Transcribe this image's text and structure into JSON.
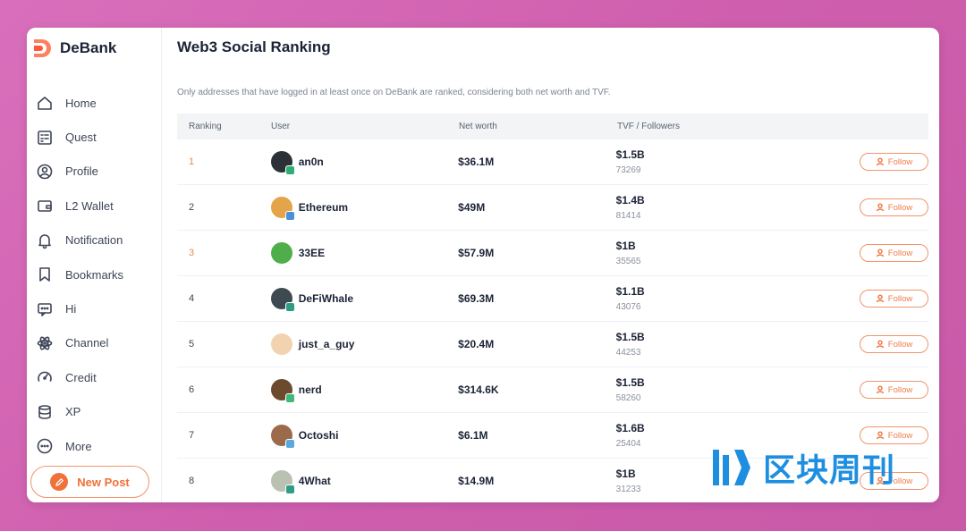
{
  "brand": {
    "name": "DeBank",
    "accent": "#f0713a"
  },
  "sidebar": {
    "items": [
      {
        "label": "Home",
        "icon": "home-icon"
      },
      {
        "label": "Quest",
        "icon": "checklist-icon"
      },
      {
        "label": "Profile",
        "icon": "profile-icon"
      },
      {
        "label": "L2 Wallet",
        "icon": "wallet-icon"
      },
      {
        "label": "Notification",
        "icon": "bell-icon"
      },
      {
        "label": "Bookmarks",
        "icon": "bookmark-icon"
      },
      {
        "label": "Hi",
        "icon": "chat-icon"
      },
      {
        "label": "Channel",
        "icon": "atom-icon"
      },
      {
        "label": "Credit",
        "icon": "gauge-icon"
      },
      {
        "label": "XP",
        "icon": "database-icon"
      },
      {
        "label": "More",
        "icon": "more-icon"
      }
    ],
    "new_post_label": "New Post"
  },
  "main": {
    "title": "Web3 Social Ranking",
    "subtitle": "Only addresses that have logged in at least once on DeBank are ranked, considering both net worth and TVF.",
    "columns": {
      "ranking": "Ranking",
      "user": "User",
      "net_worth": "Net worth",
      "tvf": "TVF / Followers"
    },
    "follow_label": "Follow",
    "rows": [
      {
        "rank": "1",
        "user": "an0n",
        "net_worth": "$36.1M",
        "tvf": "$1.5B",
        "followers": "73269",
        "avatar_color": "#2c3138",
        "badge_color": "#2fae74"
      },
      {
        "rank": "2",
        "user": "Ethereum",
        "net_worth": "$49M",
        "tvf": "$1.4B",
        "followers": "81414",
        "avatar_color": "#e3a44a",
        "badge_color": "#4a8fd8"
      },
      {
        "rank": "3",
        "user": "33EE",
        "net_worth": "$57.9M",
        "tvf": "$1B",
        "followers": "35565",
        "avatar_color": "#4fae4a",
        "badge_color": ""
      },
      {
        "rank": "4",
        "user": "DeFiWhale",
        "net_worth": "$69.3M",
        "tvf": "$1.1B",
        "followers": "43076",
        "avatar_color": "#3e4a52",
        "badge_color": "#2f9c86"
      },
      {
        "rank": "5",
        "user": "just_a_guy",
        "net_worth": "$20.4M",
        "tvf": "$1.5B",
        "followers": "44253",
        "avatar_color": "#f1d3b0",
        "badge_color": ""
      },
      {
        "rank": "6",
        "user": "nerd",
        "net_worth": "$314.6K",
        "tvf": "$1.5B",
        "followers": "58260",
        "avatar_color": "#6b4a2e",
        "badge_color": "#3fb97a"
      },
      {
        "rank": "7",
        "user": "Octoshi",
        "net_worth": "$6.1M",
        "tvf": "$1.6B",
        "followers": "25404",
        "avatar_color": "#9a6a4a",
        "badge_color": "#5aa8e0"
      },
      {
        "rank": "8",
        "user": "4What",
        "net_worth": "$14.9M",
        "tvf": "$1B",
        "followers": "31233",
        "avatar_color": "#b9c2b2",
        "badge_color": "#2f9c86"
      }
    ]
  },
  "watermark": {
    "text": "区块周刊"
  }
}
